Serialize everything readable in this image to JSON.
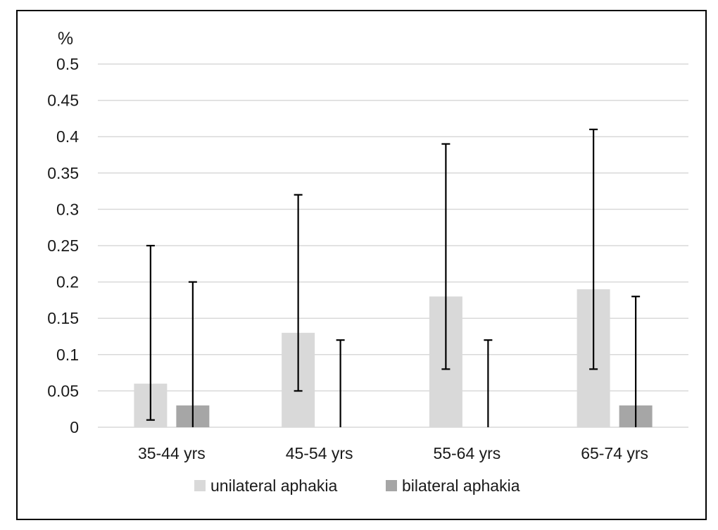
{
  "chart_data": {
    "type": "bar",
    "title": "",
    "ylabel": "%",
    "xlabel": "",
    "ylim": [
      0,
      0.5
    ],
    "yticks": [
      0,
      0.05,
      0.1,
      0.15,
      0.2,
      0.25,
      0.3,
      0.35,
      0.4,
      0.45,
      0.5
    ],
    "ytick_labels": [
      "0",
      "0.05",
      "0.1",
      "0.15",
      "0.2",
      "0.25",
      "0.3",
      "0.35",
      "0.4",
      "0.45",
      "0.5"
    ],
    "grid": true,
    "legend_position": "bottom",
    "categories": [
      "35-44 yrs",
      "45-54 yrs",
      "55-64 yrs",
      "65-74 yrs"
    ],
    "series": [
      {
        "name": "unilateral aphakia",
        "color": "#d9d9d9",
        "values": [
          0.06,
          0.13,
          0.18,
          0.19
        ],
        "error_low": [
          0.01,
          0.05,
          0.08,
          0.08
        ],
        "error_high": [
          0.25,
          0.32,
          0.39,
          0.41
        ]
      },
      {
        "name": "bilateral aphakia",
        "color": "#a6a6a6",
        "values": [
          0.03,
          0,
          0,
          0.03
        ],
        "error_low": [
          0,
          0,
          0,
          0
        ],
        "error_high": [
          0.2,
          0.12,
          0.12,
          0.18
        ]
      }
    ]
  }
}
